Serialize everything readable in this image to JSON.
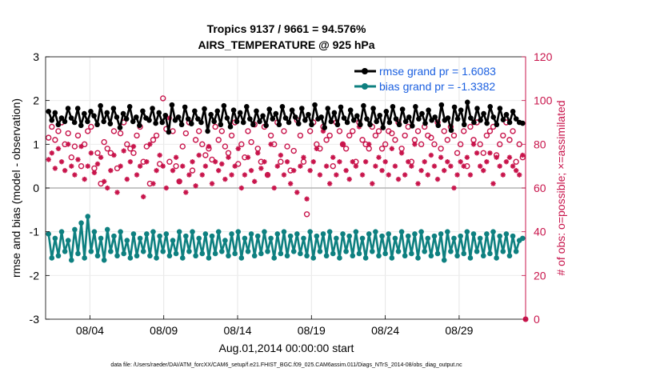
{
  "chart_data": {
    "type": "line",
    "title_line1": "Tropics 9137 / 9661 = 94.576%",
    "title_line2": "AIRS_TEMPERATURE @ 925 hPa",
    "xlabel": "Aug.01,2014 00:00:00 start",
    "ylabel_left": "rmse and bias (model - observation)",
    "ylabel_right": "# of obs: o=possible; ×=assimilated",
    "ylim_left": [
      -3,
      3
    ],
    "ylim_right": [
      0,
      120
    ],
    "yticks_left": [
      "-3",
      "-2",
      "-1",
      "0",
      "1",
      "2",
      "3"
    ],
    "yticks_right": [
      "0",
      "20",
      "40",
      "60",
      "80",
      "100",
      "120"
    ],
    "xlim_days": [
      0,
      32.5
    ],
    "xticks": [
      {
        "day": 3,
        "label": "08/04"
      },
      {
        "day": 8,
        "label": "08/09"
      },
      {
        "day": 13,
        "label": "08/14"
      },
      {
        "day": 18,
        "label": "08/19"
      },
      {
        "day": 23,
        "label": "08/24"
      },
      {
        "day": 28,
        "label": "08/29"
      }
    ],
    "legend": [
      {
        "name": "rmse grand pr = 1.6083",
        "color": "#000000"
      },
      {
        "name": "bias grand pr = -1.3382",
        "color": "#0e8080"
      }
    ],
    "series": [
      {
        "name": "rmse",
        "color": "#000000",
        "values": [
          1.75,
          1.55,
          1.72,
          1.45,
          1.6,
          1.52,
          1.82,
          1.6,
          1.5,
          1.82,
          1.43,
          1.7,
          1.52,
          1.75,
          1.65,
          1.45,
          1.88,
          1.52,
          1.72,
          1.47,
          1.82,
          1.62,
          1.38,
          1.7,
          1.58,
          1.86,
          1.52,
          1.62,
          1.43,
          1.76,
          1.6,
          1.55,
          1.82,
          1.48,
          1.72,
          1.5,
          1.66,
          1.28,
          1.9,
          1.55,
          1.62,
          1.45,
          1.85,
          1.58,
          1.47,
          1.76,
          1.58,
          1.5,
          1.81,
          1.3,
          1.68,
          1.52,
          1.76,
          1.45,
          1.88,
          1.6,
          1.4,
          1.78,
          1.52,
          1.72,
          1.5,
          1.86,
          1.58,
          1.45,
          1.76,
          1.52,
          1.65,
          1.43,
          1.8,
          1.58,
          1.7,
          1.45,
          1.86,
          1.6,
          1.5,
          1.78,
          1.62,
          1.47,
          1.82,
          1.55,
          1.68,
          1.45,
          1.9,
          1.58,
          1.62,
          1.38,
          1.82,
          1.52,
          1.72,
          1.45,
          1.85,
          1.6,
          1.5,
          1.78,
          1.55,
          1.65,
          1.45,
          1.88,
          1.58,
          1.45,
          1.82,
          1.52,
          1.66,
          1.38,
          1.75,
          1.5,
          1.86,
          1.58,
          1.45,
          1.8,
          1.52,
          1.62,
          1.42,
          1.86,
          1.58,
          1.7,
          1.48,
          1.78,
          1.55,
          1.62,
          1.43,
          1.9,
          1.55,
          1.6,
          1.32,
          1.85,
          1.58,
          1.78,
          1.45,
          1.96,
          1.6,
          1.5,
          1.82,
          1.55,
          1.7,
          1.48,
          1.86,
          1.62,
          1.45,
          1.82,
          1.56,
          1.68,
          1.5,
          1.75,
          1.58,
          1.5,
          1.48
        ]
      },
      {
        "name": "bias",
        "color": "#0e8080",
        "values": [
          -1.05,
          -1.6,
          -1.15,
          -1.55,
          -1.0,
          -1.45,
          -1.2,
          -1.65,
          -0.95,
          -1.5,
          -0.8,
          -1.6,
          -0.65,
          -1.45,
          -1.0,
          -1.55,
          -1.15,
          -1.65,
          -0.95,
          -1.45,
          -1.1,
          -1.55,
          -1.0,
          -1.5,
          -1.2,
          -1.6,
          -1.05,
          -1.55,
          -1.15,
          -1.45,
          -1.05,
          -1.55,
          -1.0,
          -1.6,
          -1.1,
          -1.45,
          -1.05,
          -1.55,
          -1.2,
          -1.5,
          -1.0,
          -1.6,
          -1.1,
          -1.45,
          -1.0,
          -1.55,
          -1.15,
          -1.5,
          -1.05,
          -1.6,
          -1.1,
          -1.5,
          -1.0,
          -1.45,
          -1.2,
          -1.55,
          -1.05,
          -1.5,
          -1.0,
          -1.6,
          -1.15,
          -1.45,
          -1.05,
          -1.55,
          -1.1,
          -1.5,
          -1.0,
          -1.45,
          -1.15,
          -1.6,
          -1.05,
          -1.5,
          -1.0,
          -1.55,
          -1.1,
          -1.45,
          -1.05,
          -1.5,
          -1.15,
          -1.55,
          -1.0,
          -1.6,
          -1.1,
          -1.45,
          -1.05,
          -1.55,
          -1.0,
          -1.5,
          -1.15,
          -1.6,
          -1.05,
          -1.45,
          -1.1,
          -1.55,
          -1.0,
          -1.5,
          -1.15,
          -1.6,
          -1.05,
          -1.45,
          -1.0,
          -1.55,
          -1.1,
          -1.5,
          -1.05,
          -1.6,
          -1.15,
          -1.45,
          -1.0,
          -1.55,
          -1.1,
          -1.5,
          -1.05,
          -1.6,
          -1.0,
          -1.45,
          -1.15,
          -1.55,
          -1.1,
          -1.5,
          -1.05,
          -1.65,
          -1.0,
          -1.45,
          -1.15,
          -1.55,
          -1.1,
          -1.5,
          -1.0,
          -1.6,
          -1.05,
          -1.45,
          -1.15,
          -1.55,
          -1.05,
          -1.5,
          -1.0,
          -1.6,
          -1.1,
          -1.45,
          -1.05,
          -1.55,
          -1.1,
          -1.45,
          -1.2,
          -1.15
        ]
      },
      {
        "name": "obs_possible",
        "color": "#c8144b",
        "marker": "circle",
        "values": [
          83,
          88,
          82,
          86,
          90,
          80,
          85,
          74,
          79,
          84,
          70,
          80,
          86,
          88,
          69,
          76,
          62,
          81,
          78,
          76,
          86,
          69,
          85,
          90,
          80,
          78,
          76,
          84,
          88,
          72,
          79,
          62,
          82,
          84,
          71,
          101,
          87,
          72,
          86,
          70,
          63,
          79,
          85,
          90,
          68,
          82,
          86,
          80,
          75,
          78,
          73,
          88,
          82,
          86,
          79,
          76,
          84,
          90,
          71,
          80,
          74,
          86,
          81,
          89,
          78,
          72,
          88,
          66,
          84,
          80,
          90,
          72,
          86,
          79,
          68,
          77,
          91,
          84,
          72,
          48,
          86,
          90,
          80,
          78,
          88,
          82,
          84,
          70,
          90,
          86,
          80,
          78,
          84,
          86,
          72,
          90,
          82,
          80,
          78,
          88,
          84,
          86,
          78,
          80,
          86,
          85,
          82,
          90,
          78,
          84,
          88,
          72,
          82,
          86,
          80,
          88,
          84,
          83,
          80,
          90,
          78,
          86,
          82,
          88,
          84,
          76,
          80,
          86,
          70,
          88,
          82,
          90,
          80,
          76,
          84,
          86,
          88,
          75,
          80,
          84,
          90,
          82,
          86,
          72,
          80,
          74
        ]
      },
      {
        "name": "obs_assimilated",
        "color": "#c8144b",
        "marker": "asterisk",
        "values": [
          73,
          76,
          69,
          78,
          72,
          68,
          80,
          70,
          66,
          73,
          79,
          64,
          70,
          76,
          67,
          71,
          74,
          63,
          60,
          68,
          75,
          58,
          70,
          77,
          64,
          72,
          79,
          66,
          70,
          56,
          72,
          80,
          62,
          68,
          75,
          70,
          60,
          92,
          68,
          74,
          63,
          70,
          58,
          66,
          72,
          61,
          75,
          66,
          70,
          79,
          62,
          72,
          68,
          71,
          64,
          74,
          66,
          70,
          78,
          60,
          66,
          74,
          68,
          63,
          76,
          69,
          72,
          66,
          80,
          60,
          70,
          75,
          66,
          72,
          62,
          68,
          58,
          70,
          74,
          55,
          68,
          72,
          78,
          66,
          86,
          70,
          62,
          74,
          66,
          72,
          80,
          68,
          64,
          72,
          70,
          88,
          66,
          72,
          80,
          62,
          70,
          74,
          68,
          72,
          66,
          78,
          70,
          64,
          76,
          66,
          72,
          70,
          80,
          62,
          68,
          72,
          66,
          75,
          70,
          64,
          74,
          68,
          72,
          70,
          60,
          66,
          72,
          70,
          74,
          66,
          80,
          76,
          70,
          68,
          72,
          76,
          62,
          74,
          70,
          66,
          72,
          74,
          70,
          68,
          66,
          75
        ]
      }
    ],
    "footnote": "data file: /Users/raeder/DAI/ATM_forcXX/CAM6_setup/f.e21.FHIST_BGC.f09_025.CAM6assim.011/Diags_NTrS_2014-08/obs_diag_output.nc"
  }
}
